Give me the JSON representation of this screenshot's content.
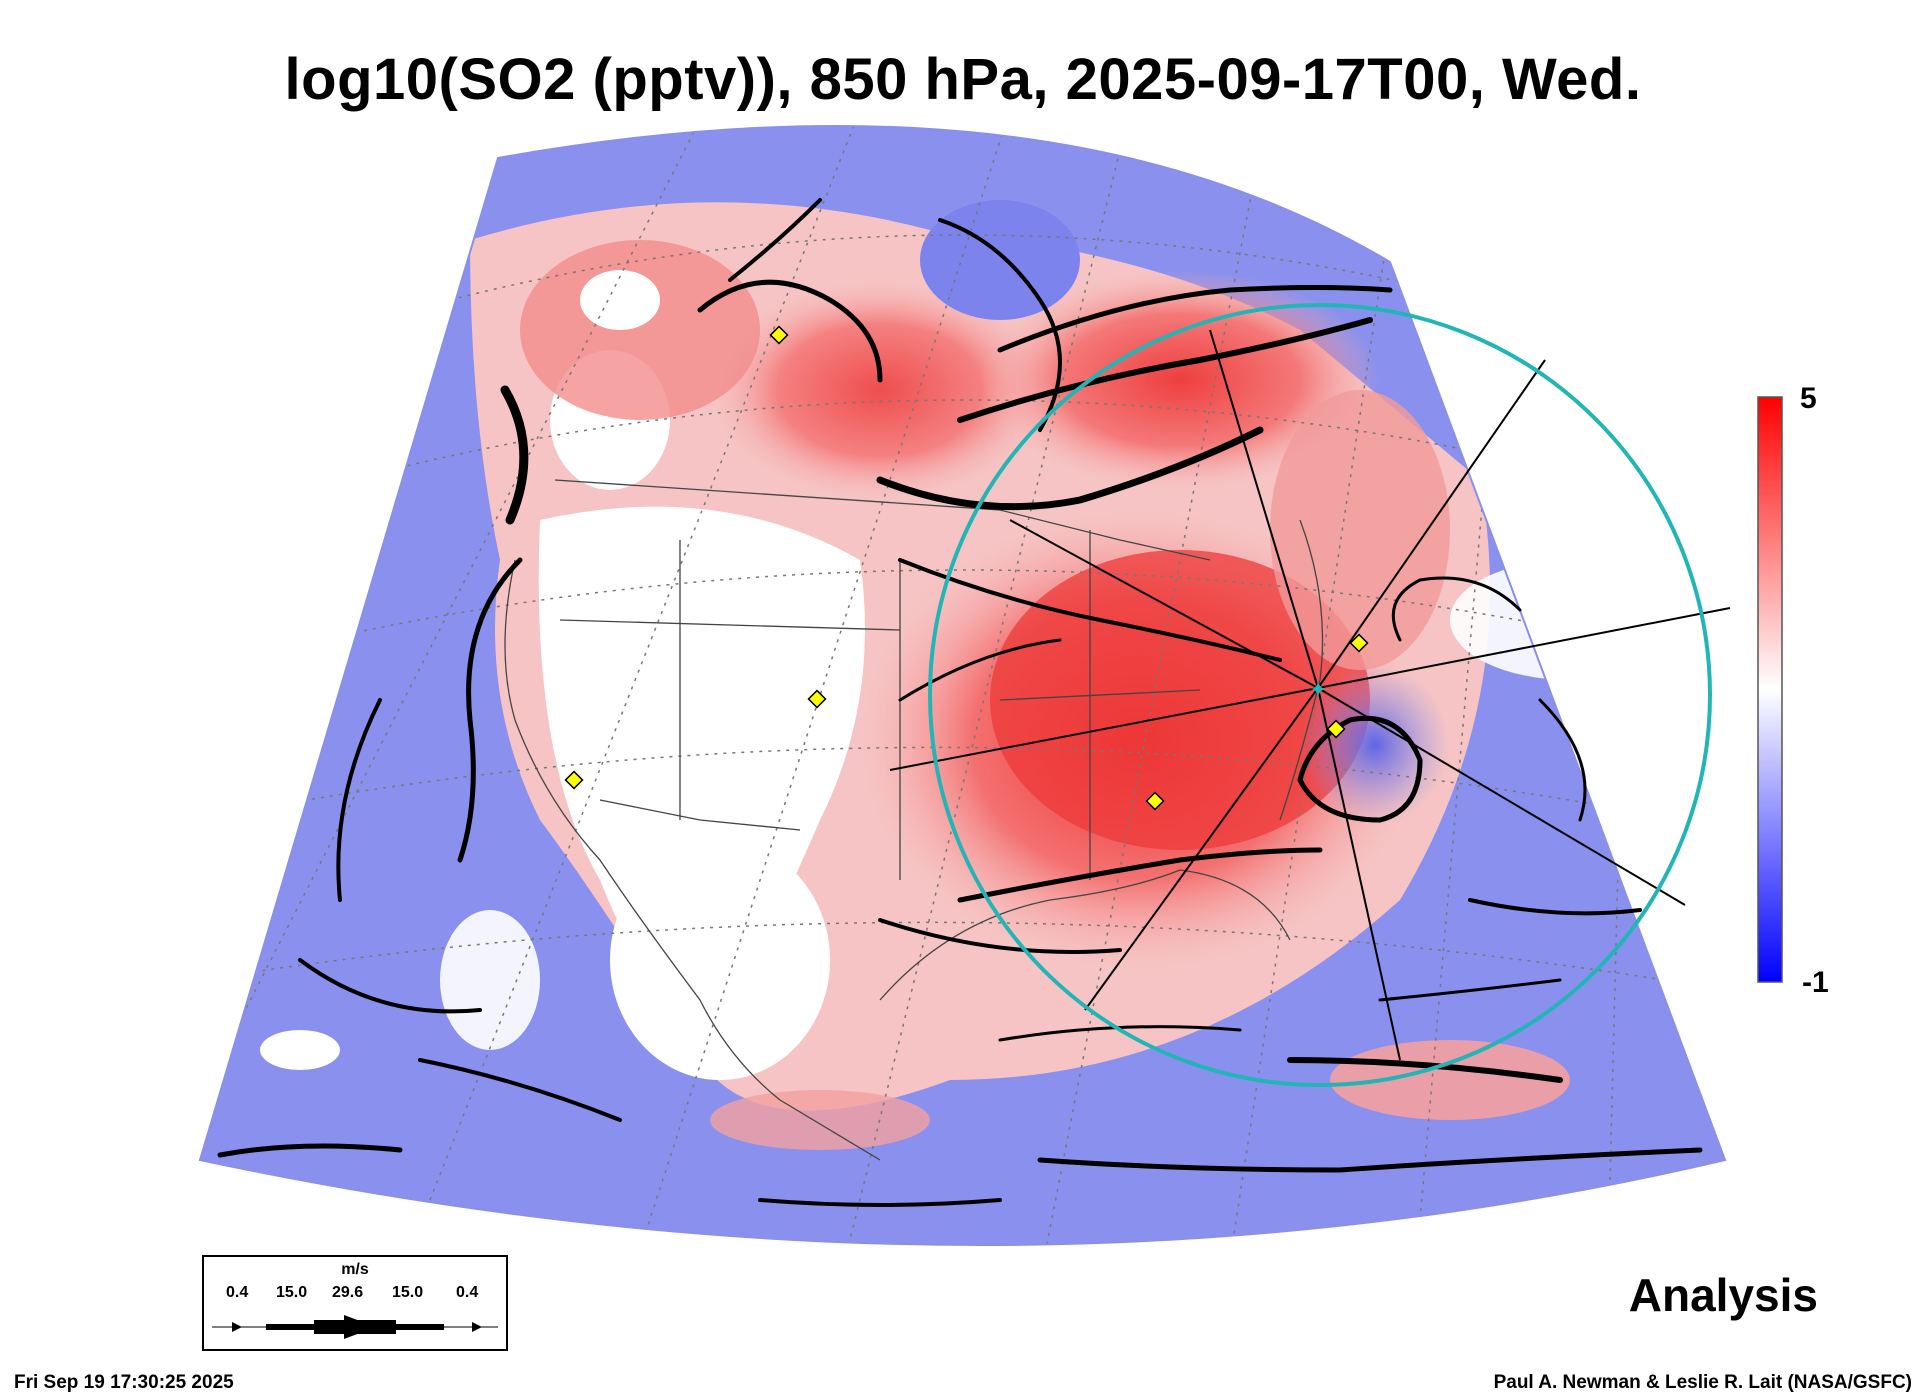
{
  "title": "log10(SO2 (pptv)), 850 hPa, 2025-09-17T00, Wed.",
  "colorbar": {
    "max_label": "5",
    "min_label": "-1",
    "colors": {
      "high": "#ff0000",
      "mid": "#ffffff",
      "low": "#0000ff"
    }
  },
  "wind_key": {
    "unit": "m/s",
    "values": [
      "0.4",
      "15.0",
      "29.6",
      "15.0",
      "0.4"
    ]
  },
  "analysis_label": "Analysis",
  "footer": {
    "timestamp": "Fri Sep 19 17:30:25 2025",
    "credit": "Paul A. Newman & Leslie R. Lait (NASA/GSFC)"
  },
  "map": {
    "field_colors": {
      "red": "#f05a5a",
      "pink": "#f7a8a8",
      "blue": "#7f86ee",
      "lightblue": "#b4b8f6"
    },
    "ring_color": "#22b5b5",
    "marker_color": "#ffff00",
    "icons": [
      "station-diamond-icon",
      "sample-star-icon"
    ]
  }
}
